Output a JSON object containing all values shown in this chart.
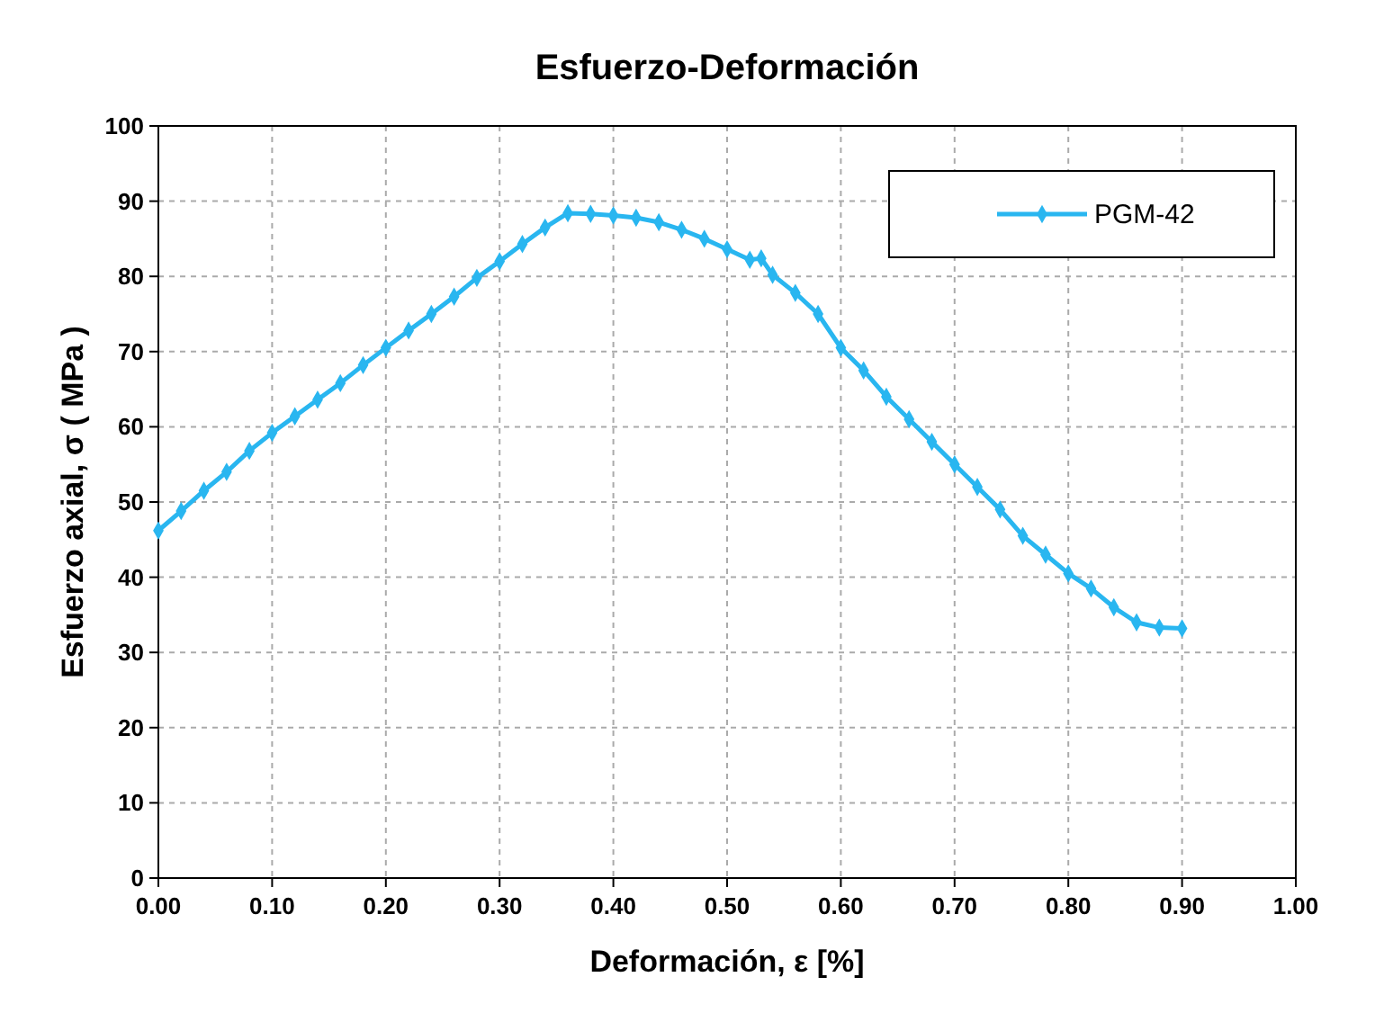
{
  "chart_data": {
    "type": "line",
    "title": "Esfuerzo-Deformación",
    "xlabel": "Deformación, ε [%]",
    "ylabel": "Esfuerzo axial, σ ( MPa )",
    "xlim": [
      0,
      1
    ],
    "xticks": [
      {
        "value": 0,
        "label": "0.00"
      },
      {
        "value": 0.1,
        "label": "0.10"
      },
      {
        "value": 0.2,
        "label": "0.20"
      },
      {
        "value": 0.3,
        "label": "0.30"
      },
      {
        "value": 0.4,
        "label": "0.40"
      },
      {
        "value": 0.5,
        "label": "0.50"
      },
      {
        "value": 0.6,
        "label": "0.60"
      },
      {
        "value": 0.7,
        "label": "0.70"
      },
      {
        "value": 0.8,
        "label": "0.80"
      },
      {
        "value": 0.9,
        "label": "0.90"
      },
      {
        "value": 1,
        "label": "1.00"
      }
    ],
    "ylim": [
      0,
      100
    ],
    "yticks": [
      0,
      10,
      20,
      30,
      40,
      50,
      60,
      70,
      80,
      90,
      100
    ],
    "grid": true,
    "legend": "top right",
    "marker": "diamond",
    "line_style": "solid",
    "x": [
      0,
      0.02,
      0.04,
      0.06,
      0.08,
      0.1,
      0.12,
      0.14,
      0.16,
      0.18,
      0.2,
      0.22,
      0.24,
      0.26,
      0.28,
      0.3,
      0.32,
      0.34,
      0.36,
      0.38,
      0.4,
      0.42,
      0.44,
      0.46,
      0.48,
      0.5,
      0.52,
      0.53,
      0.54,
      0.56,
      0.58,
      0.6,
      0.62,
      0.64,
      0.66,
      0.68,
      0.7,
      0.72,
      0.74,
      0.76,
      0.78,
      0.8,
      0.82,
      0.84,
      0.86,
      0.88,
      0.9
    ],
    "series": [
      {
        "name": "PGM-42",
        "color": "#29b6f0",
        "values": [
          46.2,
          48.8,
          51.5,
          54,
          56.8,
          59.2,
          61.4,
          63.6,
          65.8,
          68.2,
          70.5,
          72.8,
          75,
          77.3,
          79.8,
          82,
          84.3,
          86.5,
          88.4,
          88.3,
          88.1,
          87.8,
          87.2,
          86.2,
          85,
          83.6,
          82.2,
          82.4,
          80.2,
          77.8,
          75,
          70.5,
          67.5,
          64,
          61,
          58,
          55,
          52,
          49,
          45.5,
          43,
          40.5,
          38.5,
          36,
          34,
          33.3,
          33.2
        ]
      }
    ]
  }
}
